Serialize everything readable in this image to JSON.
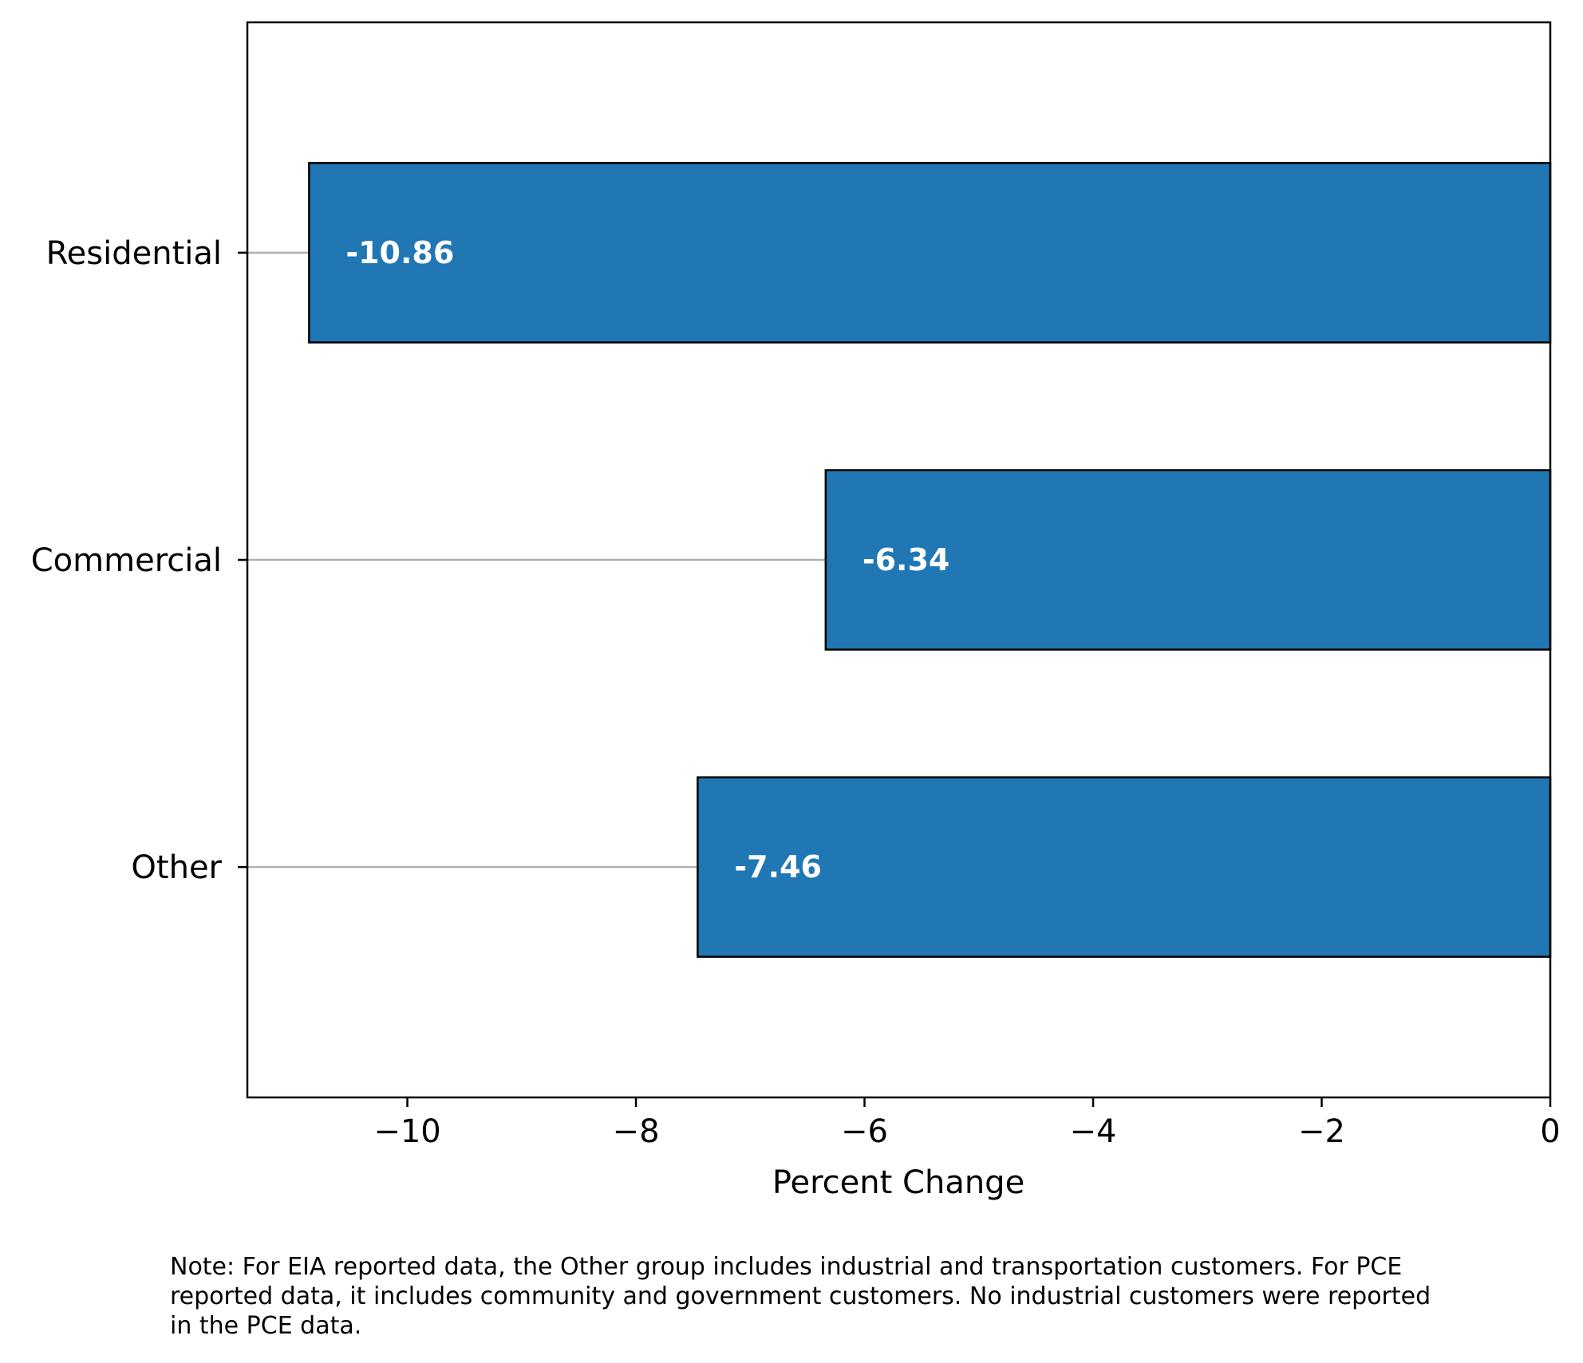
{
  "chart_data": {
    "type": "bar",
    "orientation": "horizontal",
    "categories": [
      "Residential",
      "Commercial",
      "Other"
    ],
    "values": [
      -10.86,
      -6.34,
      -7.46
    ],
    "value_labels": [
      "-10.86",
      "-6.34",
      "-7.46"
    ],
    "xlabel": "Percent Change",
    "ylabel": "",
    "title": "",
    "xlim": [
      -11.4,
      0
    ],
    "xticks": [
      -10,
      -8,
      -6,
      -4,
      -2,
      0
    ],
    "xtick_labels": [
      "−10",
      "−8",
      "−6",
      "−4",
      "−2",
      "0"
    ],
    "grid": false,
    "bar_color": "#2077b4",
    "bar_edge_color": "#000000",
    "leader_line_color": "#b0b0b0",
    "label_color": "#ffffff"
  },
  "note": {
    "lines": [
      "Note: For EIA reported data, the Other group includes industrial and transportation customers. For PCE",
      "reported data, it includes community and government customers. No industrial customers were reported",
      "in the PCE data."
    ]
  }
}
